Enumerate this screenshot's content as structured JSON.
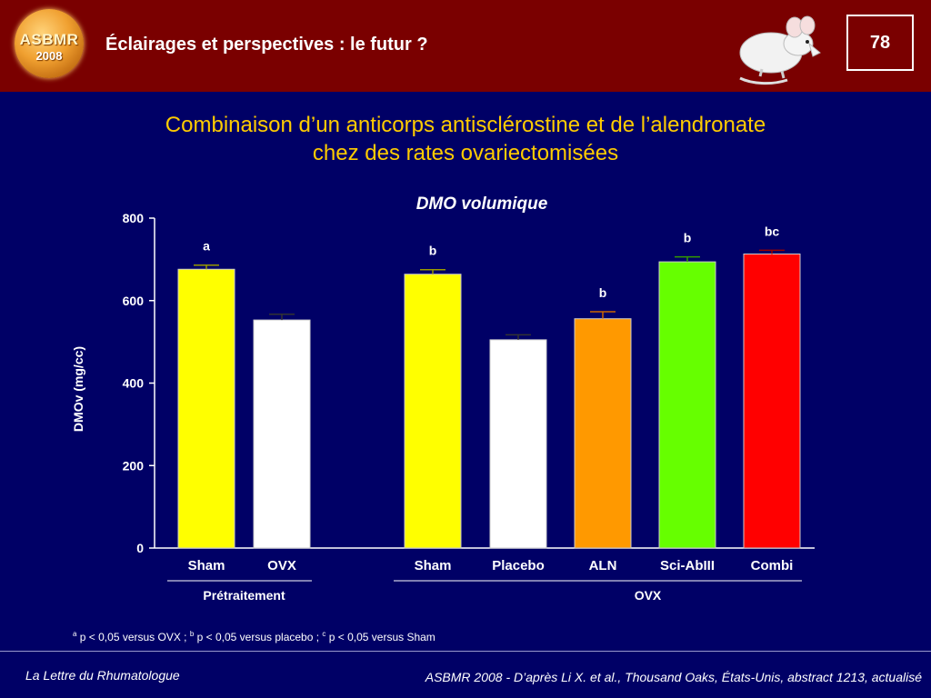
{
  "header": {
    "title": "Éclairages et perspectives : le futur ?",
    "logo_text_1": "ASBMR",
    "logo_text_2": "2008",
    "page_number": "78"
  },
  "slide": {
    "title_line1": "Combinaison d’un anticorps antisclérostine et de l’alendronate",
    "title_line2": "chez des rates ovariectomisées"
  },
  "chart_data": {
    "type": "bar",
    "title": "DMO volumique",
    "ylabel": "DMOv  (mg/cc)",
    "ylim": [
      0,
      800
    ],
    "yticks": [
      "0",
      "200",
      "400",
      "600",
      "800"
    ],
    "categories": [
      "Sham",
      "OVX",
      "Sham",
      "Placebo",
      "ALN",
      "Sci-AbIII",
      "Combi"
    ],
    "values": [
      676,
      553,
      664,
      505,
      556,
      694,
      713
    ],
    "errors": [
      10,
      14,
      11,
      12,
      17,
      12,
      9
    ],
    "annotations": [
      "a",
      "",
      "b",
      "",
      "b",
      "b",
      "bc"
    ],
    "bar_colors": [
      "#ffff00",
      "#ffffff",
      "#ffff00",
      "#ffffff",
      "#ff9900",
      "#66ff00",
      "#ff0000"
    ],
    "error_colors": [
      "#999900",
      "#333333",
      "#999900",
      "#333333",
      "#cc6600",
      "#339900",
      "#990000"
    ],
    "groups": [
      {
        "label": "Prétraitement",
        "start": 0,
        "end": 1
      },
      {
        "label": "OVX",
        "start": 2,
        "end": 6
      }
    ]
  },
  "footnote": {
    "sup_a": "a",
    "text_a": " p < 0,05 versus OVX ; ",
    "sup_b": "b",
    "text_b": " p < 0,05 versus placebo ; ",
    "sup_c": "c",
    "text_c": " p < 0,05 versus Sham"
  },
  "footer": {
    "left": "La Lettre du Rhumatologue",
    "right": "ASBMR 2008 - D’après Li X. et al., Thousand Oaks, États-Unis, abstract 1213, actualisé"
  },
  "colors": {
    "background": "#000066",
    "header": "#7a0000",
    "title": "#ffcc00"
  }
}
